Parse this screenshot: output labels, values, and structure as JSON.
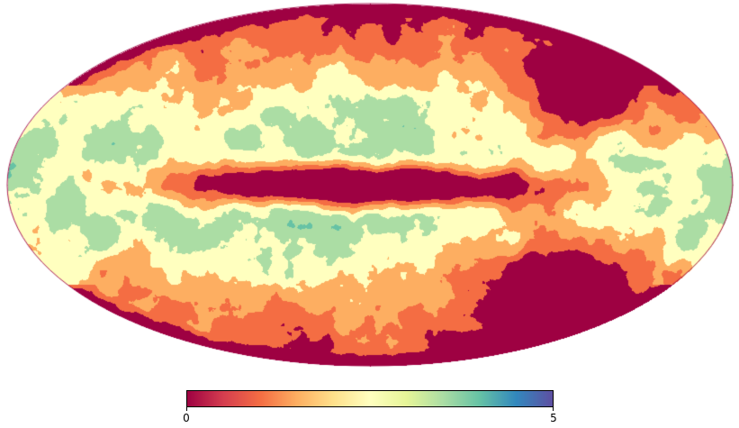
{
  "map": {
    "projection": "mollweide",
    "colormap": "spectral",
    "colorbar_min": 0,
    "colorbar_max": 5,
    "colorbar_ticks": [
      "0",
      "5"
    ],
    "color_levels": [
      {
        "level": 0.0,
        "color": "#9e0142"
      },
      {
        "level": 0.5,
        "color": "#d53e4f"
      },
      {
        "level": 1.0,
        "color": "#f46d43"
      },
      {
        "level": 1.5,
        "color": "#fdae61"
      },
      {
        "level": 2.0,
        "color": "#fee08b"
      },
      {
        "level": 2.5,
        "color": "#ffffbf"
      },
      {
        "level": 3.0,
        "color": "#e6f598"
      },
      {
        "level": 3.5,
        "color": "#abdda4"
      },
      {
        "level": 4.0,
        "color": "#66c2a5"
      },
      {
        "level": 4.5,
        "color": "#3288bd"
      },
      {
        "level": 5.0,
        "color": "#5e4fa2"
      }
    ]
  }
}
